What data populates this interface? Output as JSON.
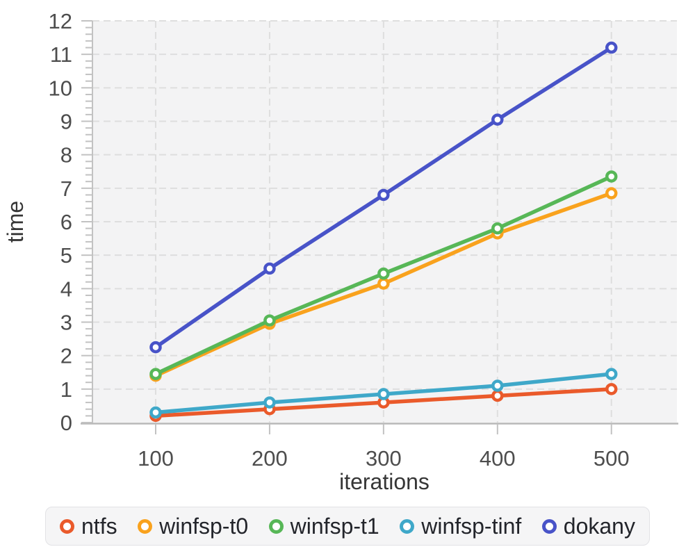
{
  "chart_data": {
    "type": "line",
    "title": "",
    "xlabel": "iterations",
    "ylabel": "time",
    "x": [
      100,
      200,
      300,
      400,
      500
    ],
    "x_tick_labels": [
      "100",
      "200",
      "300",
      "400",
      "500"
    ],
    "y_tick_labels": [
      "0",
      "1",
      "2",
      "3",
      "4",
      "5",
      "6",
      "7",
      "8",
      "9",
      "10",
      "11",
      "12"
    ],
    "xlim": [
      44.5,
      557.5
    ],
    "ylim": [
      0,
      12
    ],
    "y_minor_tick_step": 0.2,
    "grid": {
      "horizontal": true,
      "vertical": true,
      "style": "dashed"
    },
    "legend_position": "bottom",
    "series": [
      {
        "name": "ntfs",
        "color": "#EA5A2B",
        "values": [
          0.2,
          0.4,
          0.6,
          0.8,
          1.0
        ]
      },
      {
        "name": "winfsp-t0",
        "color": "#F9A21D",
        "values": [
          1.4,
          2.95,
          4.15,
          5.65,
          6.85
        ]
      },
      {
        "name": "winfsp-t1",
        "color": "#57B757",
        "values": [
          1.45,
          3.05,
          4.45,
          5.8,
          7.35
        ]
      },
      {
        "name": "winfsp-tinf",
        "color": "#3FA8C9",
        "values": [
          0.3,
          0.6,
          0.85,
          1.1,
          1.45
        ]
      },
      {
        "name": "dokany",
        "color": "#4853C8",
        "values": [
          2.25,
          4.6,
          6.8,
          9.05,
          11.2
        ]
      }
    ],
    "colors": {
      "page_background": "#ffffff",
      "plot_background": "#f3f3f4",
      "grid_line": "#dedede",
      "axis_line": "#b8b8b8",
      "tick_mark": "#c2c2c2",
      "tick_label": "#4d4d4d",
      "axis_label": "#363636",
      "legend_background": "#f5f5f6",
      "legend_border": "#e2e2e5",
      "legend_text": "#23252b"
    }
  }
}
